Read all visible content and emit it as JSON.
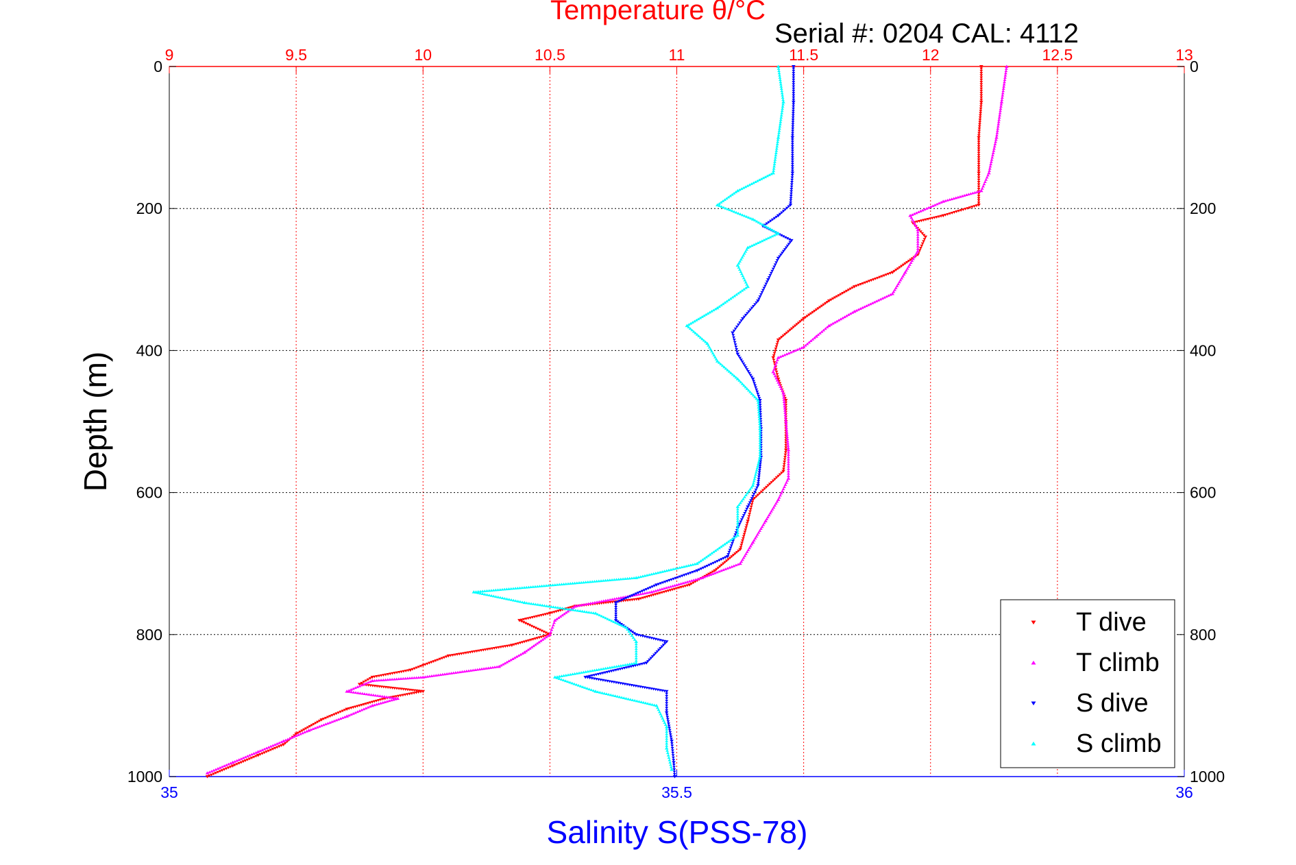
{
  "chart_data": {
    "type": "scatter",
    "title": "Temperature θ/°C",
    "subtitle": "Serial #: 0204  CAL: 4112",
    "ylabel": "Depth (m)",
    "xlabel_bottom": "Salinity S(PSS-78)",
    "ylim": [
      0,
      1000
    ],
    "y_reversed": true,
    "xlim_top": [
      9,
      13
    ],
    "xlim_bottom": [
      35,
      36
    ],
    "top_ticks": [
      "9",
      "9.5",
      "10",
      "10.5",
      "11",
      "11.5",
      "12",
      "12.5",
      "13"
    ],
    "bottom_ticks": [
      "35",
      "35.5",
      "36"
    ],
    "y_ticks": [
      "0",
      "200",
      "400",
      "600",
      "800",
      "1000"
    ],
    "grid": true,
    "legend_position": "bottom-right",
    "colors": {
      "temperature": "#ff0000",
      "salinity": "#0000ff",
      "t_dive": "#ff0000",
      "t_climb": "#ff00ff",
      "s_dive": "#0000ff",
      "s_climb": "#00ffff"
    },
    "series": [
      {
        "name": "T dive",
        "axis": "top",
        "marker": "triangle-down",
        "color": "#ff0000",
        "points": [
          [
            12.2,
            0
          ],
          [
            12.2,
            50
          ],
          [
            12.19,
            100
          ],
          [
            12.19,
            150
          ],
          [
            12.19,
            195
          ],
          [
            12.05,
            210
          ],
          [
            11.93,
            220
          ],
          [
            11.98,
            240
          ],
          [
            11.95,
            265
          ],
          [
            11.85,
            290
          ],
          [
            11.7,
            310
          ],
          [
            11.6,
            330
          ],
          [
            11.5,
            355
          ],
          [
            11.4,
            385
          ],
          [
            11.38,
            410
          ],
          [
            11.4,
            440
          ],
          [
            11.43,
            470
          ],
          [
            11.43,
            500
          ],
          [
            11.43,
            540
          ],
          [
            11.42,
            570
          ],
          [
            11.3,
            610
          ],
          [
            11.28,
            640
          ],
          [
            11.25,
            680
          ],
          [
            11.15,
            710
          ],
          [
            11.05,
            730
          ],
          [
            10.85,
            750
          ],
          [
            10.6,
            760
          ],
          [
            10.5,
            770
          ],
          [
            10.38,
            780
          ],
          [
            10.5,
            800
          ],
          [
            10.35,
            815
          ],
          [
            10.1,
            830
          ],
          [
            9.95,
            850
          ],
          [
            9.8,
            860
          ],
          [
            9.75,
            870
          ],
          [
            10.0,
            880
          ],
          [
            9.85,
            890
          ],
          [
            9.7,
            905
          ],
          [
            9.6,
            920
          ],
          [
            9.5,
            940
          ],
          [
            9.45,
            955
          ],
          [
            9.35,
            970
          ],
          [
            9.25,
            985
          ],
          [
            9.15,
            1000
          ]
        ]
      },
      {
        "name": "T climb",
        "axis": "top",
        "marker": "triangle-up",
        "color": "#ff00ff",
        "points": [
          [
            12.3,
            0
          ],
          [
            12.28,
            50
          ],
          [
            12.26,
            100
          ],
          [
            12.23,
            150
          ],
          [
            12.2,
            175
          ],
          [
            12.05,
            190
          ],
          [
            11.92,
            210
          ],
          [
            11.95,
            230
          ],
          [
            11.95,
            260
          ],
          [
            11.9,
            290
          ],
          [
            11.85,
            320
          ],
          [
            11.7,
            345
          ],
          [
            11.6,
            365
          ],
          [
            11.55,
            380
          ],
          [
            11.5,
            395
          ],
          [
            11.4,
            410
          ],
          [
            11.38,
            430
          ],
          [
            11.42,
            460
          ],
          [
            11.43,
            500
          ],
          [
            11.44,
            540
          ],
          [
            11.44,
            580
          ],
          [
            11.4,
            610
          ],
          [
            11.35,
            640
          ],
          [
            11.3,
            670
          ],
          [
            11.25,
            700
          ],
          [
            11.1,
            720
          ],
          [
            10.9,
            740
          ],
          [
            10.6,
            760
          ],
          [
            10.52,
            780
          ],
          [
            10.5,
            800
          ],
          [
            10.4,
            825
          ],
          [
            10.3,
            845
          ],
          [
            10.0,
            860
          ],
          [
            9.8,
            865
          ],
          [
            9.7,
            880
          ],
          [
            9.9,
            890
          ],
          [
            9.8,
            900
          ],
          [
            9.7,
            915
          ],
          [
            9.55,
            935
          ],
          [
            9.45,
            950
          ],
          [
            9.35,
            965
          ],
          [
            9.25,
            980
          ],
          [
            9.15,
            995
          ]
        ]
      },
      {
        "name": "S dive",
        "axis": "bottom",
        "marker": "triangle-down",
        "color": "#0000ff",
        "points": [
          [
            35.615,
            0
          ],
          [
            35.615,
            50
          ],
          [
            35.614,
            100
          ],
          [
            35.614,
            150
          ],
          [
            35.612,
            195
          ],
          [
            35.6,
            210
          ],
          [
            35.585,
            225
          ],
          [
            35.613,
            245
          ],
          [
            35.6,
            270
          ],
          [
            35.59,
            300
          ],
          [
            35.58,
            330
          ],
          [
            35.565,
            355
          ],
          [
            35.555,
            375
          ],
          [
            35.56,
            405
          ],
          [
            35.575,
            440
          ],
          [
            35.582,
            470
          ],
          [
            35.583,
            510
          ],
          [
            35.583,
            550
          ],
          [
            35.58,
            590
          ],
          [
            35.57,
            620
          ],
          [
            35.56,
            650
          ],
          [
            35.55,
            690
          ],
          [
            35.52,
            710
          ],
          [
            35.48,
            730
          ],
          [
            35.44,
            755
          ],
          [
            35.44,
            780
          ],
          [
            35.46,
            800
          ],
          [
            35.49,
            810
          ],
          [
            35.47,
            840
          ],
          [
            35.41,
            860
          ],
          [
            35.49,
            880
          ],
          [
            35.49,
            910
          ],
          [
            35.495,
            950
          ],
          [
            35.497,
            980
          ],
          [
            35.498,
            1000
          ]
        ]
      },
      {
        "name": "S climb",
        "axis": "bottom",
        "marker": "triangle-up",
        "color": "#00ffff",
        "points": [
          [
            35.6,
            0
          ],
          [
            35.605,
            50
          ],
          [
            35.6,
            100
          ],
          [
            35.595,
            150
          ],
          [
            35.56,
            175
          ],
          [
            35.54,
            195
          ],
          [
            35.575,
            215
          ],
          [
            35.6,
            235
          ],
          [
            35.57,
            255
          ],
          [
            35.56,
            280
          ],
          [
            35.57,
            310
          ],
          [
            35.54,
            340
          ],
          [
            35.51,
            365
          ],
          [
            35.53,
            390
          ],
          [
            35.54,
            415
          ],
          [
            35.56,
            440
          ],
          [
            35.58,
            470
          ],
          [
            35.582,
            510
          ],
          [
            35.582,
            550
          ],
          [
            35.575,
            590
          ],
          [
            35.56,
            620
          ],
          [
            35.56,
            660
          ],
          [
            35.52,
            700
          ],
          [
            35.46,
            720
          ],
          [
            35.3,
            740
          ],
          [
            35.35,
            755
          ],
          [
            35.42,
            770
          ],
          [
            35.45,
            790
          ],
          [
            35.46,
            810
          ],
          [
            35.46,
            840
          ],
          [
            35.38,
            860
          ],
          [
            35.42,
            880
          ],
          [
            35.48,
            900
          ],
          [
            35.49,
            930
          ],
          [
            35.49,
            960
          ],
          [
            35.495,
            990
          ]
        ]
      }
    ],
    "legend": [
      {
        "label": "T dive",
        "color": "#ff0000",
        "marker": "triangle-down"
      },
      {
        "label": "T climb",
        "color": "#ff00ff",
        "marker": "triangle-up"
      },
      {
        "label": "S dive",
        "color": "#0000ff",
        "marker": "triangle-down"
      },
      {
        "label": "S climb",
        "color": "#00ffff",
        "marker": "triangle-up"
      }
    ]
  }
}
